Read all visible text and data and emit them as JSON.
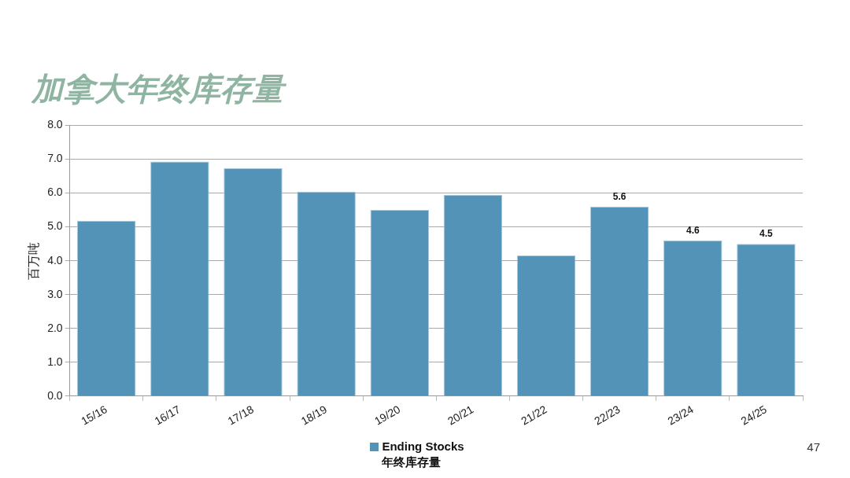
{
  "chart_data": {
    "type": "bar",
    "title": "加拿大年终库存量",
    "ylabel": "百万吨",
    "categories": [
      "15/16",
      "16/17",
      "17/18",
      "18/19",
      "19/20",
      "20/21",
      "21/22",
      "22/23",
      "23/24",
      "24/25"
    ],
    "series": [
      {
        "name": "Ending Stocks\n年终库存量",
        "color": "#5393b8",
        "values": [
          5.18,
          6.93,
          6.73,
          6.04,
          5.5,
          5.95,
          4.16,
          5.6,
          4.6,
          4.5
        ],
        "value_labels": [
          null,
          null,
          null,
          null,
          null,
          null,
          null,
          "5.6",
          "4.6",
          "4.5"
        ]
      }
    ],
    "ylim": [
      0,
      8
    ],
    "yticks": [
      {
        "value": 0,
        "label": "0.0"
      },
      {
        "value": 1,
        "label": "1.0"
      },
      {
        "value": 2,
        "label": "2.0"
      },
      {
        "value": 3,
        "label": "3.0"
      },
      {
        "value": 4,
        "label": "4.0"
      },
      {
        "value": 5,
        "label": "5.0"
      },
      {
        "value": 6,
        "label": "6.0"
      },
      {
        "value": 7,
        "label": "7.0"
      },
      {
        "value": 8,
        "label": "8.0"
      }
    ],
    "grid": "y",
    "legend": "bottom",
    "annotations": [
      "47"
    ]
  }
}
